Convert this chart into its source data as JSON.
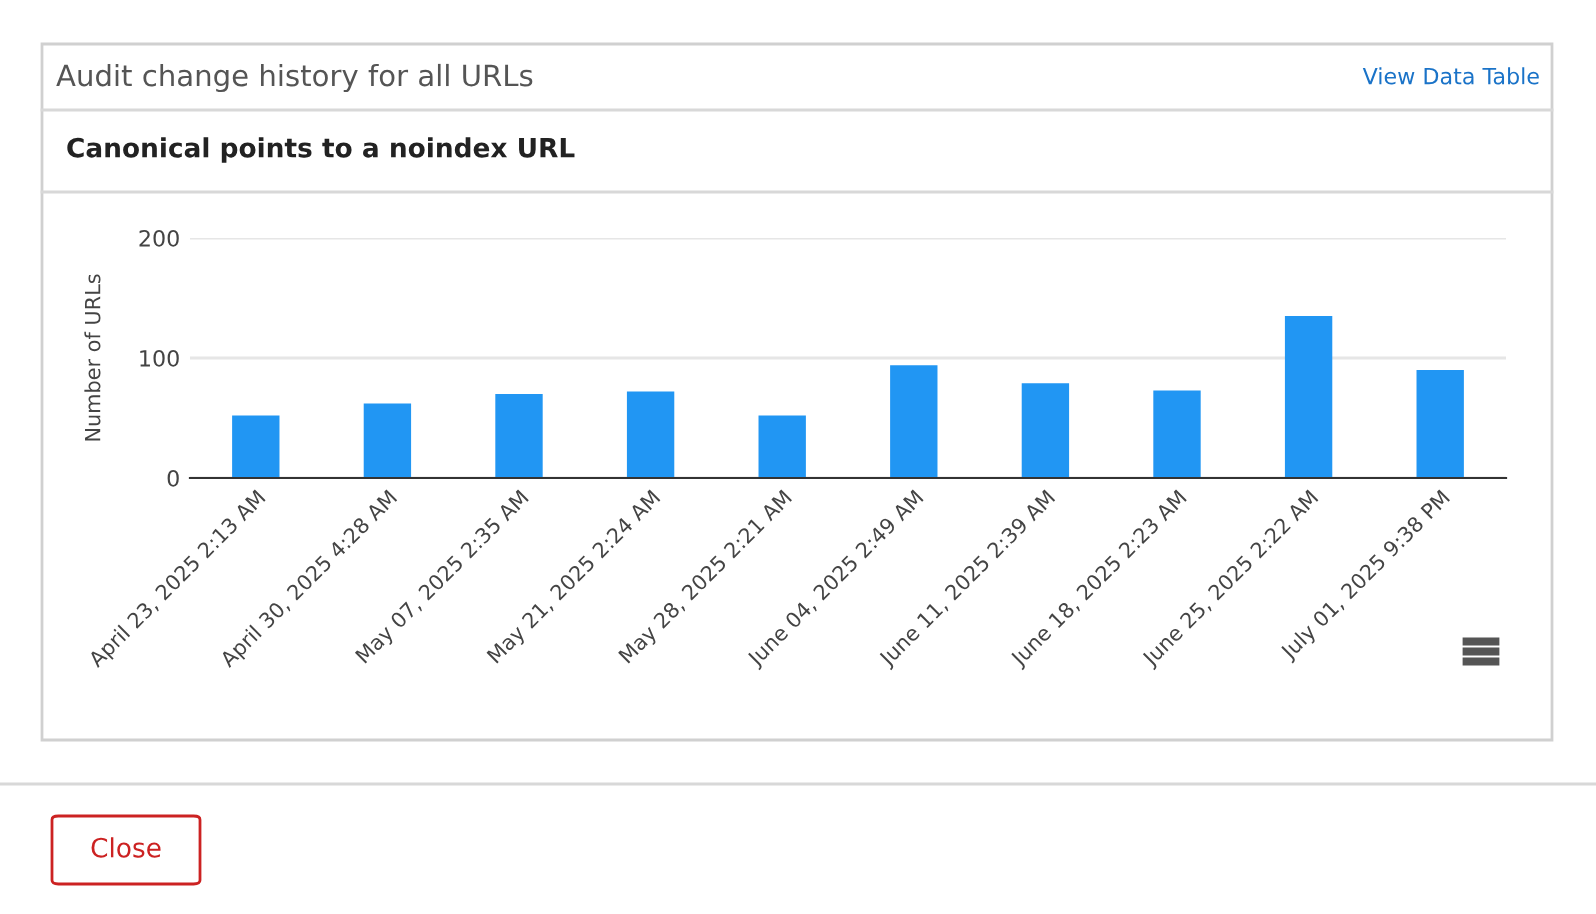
{
  "chart_data": {
    "type": "bar",
    "title": "Audit change history for all URLs",
    "subtitle": "Canonical points to a noindex URL",
    "ylabel": "Number of URLs",
    "categories": [
      "April 23, 2025 2:13 AM",
      "April 30, 2025 4:28 AM",
      "May 07, 2025 2:35 AM",
      "May 21, 2025 2:24 AM",
      "May 28, 2025 2:21 AM",
      "June 04, 2025 2:49 AM",
      "June 11, 2025 2:39 AM",
      "June 18, 2025 2:23 AM",
      "June 25, 2025 2:22 AM",
      "July 01, 2025 9:38 PM"
    ],
    "values": [
      52,
      62,
      70,
      72,
      52,
      94,
      79,
      73,
      135,
      90
    ],
    "color": "#2196f3",
    "ylim": [
      0,
      200
    ],
    "yticks": [
      0,
      100,
      200
    ],
    "grid": "y",
    "legend": false,
    "annotations": [
      "View Data Table",
      "Close"
    ]
  }
}
